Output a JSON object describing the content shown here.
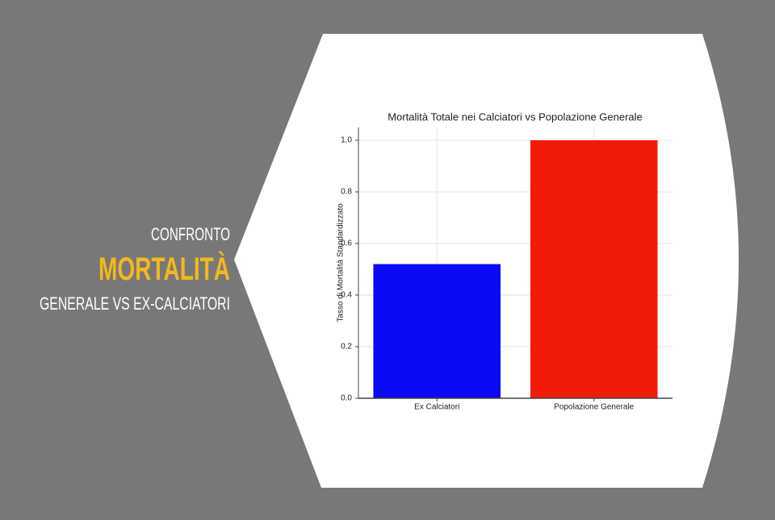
{
  "slide": {
    "kicker": "CONFRONTO",
    "title": "MORTALITÀ",
    "subtitle": "GENERALE VS EX-CALCIATORI"
  },
  "chart_data": {
    "type": "bar",
    "title": "Mortalità Totale nei Calciatori vs Popolazione Generale",
    "y_label": "Tasso di Mortalità Standardizzato",
    "categories": [
      "Ex Calciatori",
      "Popolazione Generale"
    ],
    "values": [
      0.52,
      1.0
    ],
    "colors": [
      "#0a0af5",
      "#f21a0a"
    ],
    "ylim": [
      0,
      1.05
    ],
    "yticks": [
      {
        "value": 0,
        "label": "0.0"
      },
      0.2,
      0.4,
      0.6,
      0.8,
      {
        "value": 1,
        "label": "1.0"
      }
    ],
    "grid": true
  }
}
